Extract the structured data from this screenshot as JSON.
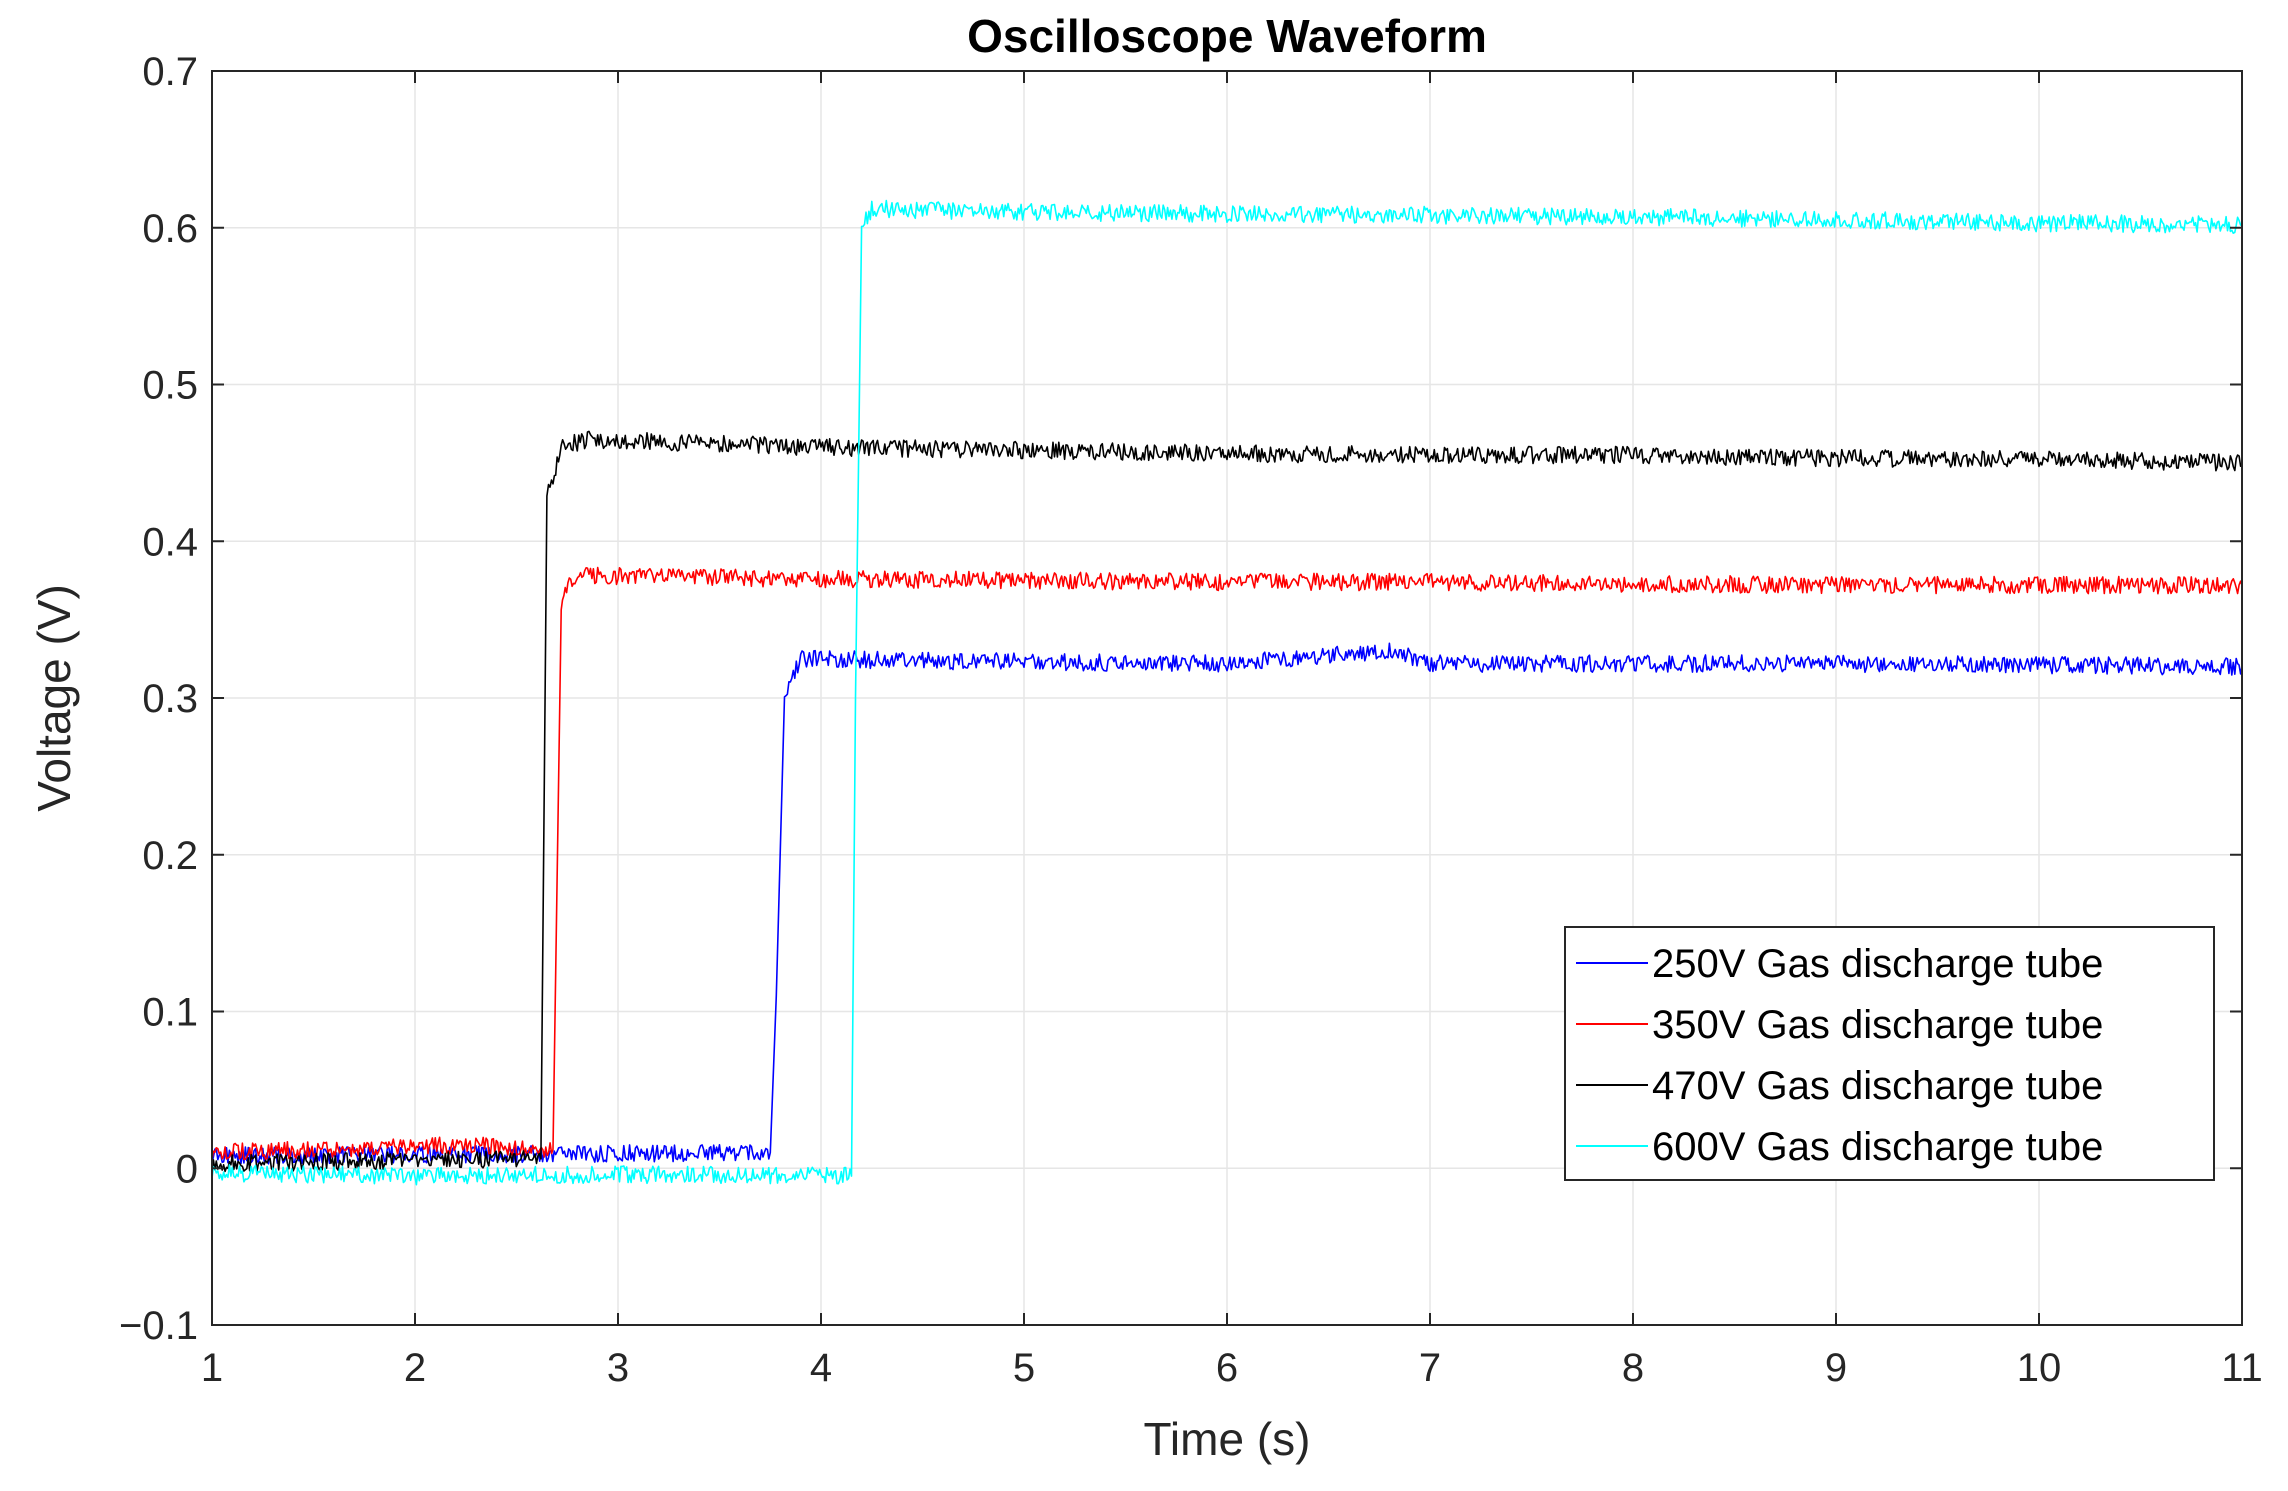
{
  "chart_data": {
    "type": "line",
    "title": "Oscilloscope Waveform",
    "xlabel": "Time (s)",
    "ylabel": "Voltage (V)",
    "xlim": [
      1,
      11
    ],
    "ylim": [
      -0.1,
      0.7
    ],
    "xticks": [
      1,
      2,
      3,
      4,
      5,
      6,
      7,
      8,
      9,
      10,
      11
    ],
    "xtick_labels": [
      "1",
      "2",
      "3",
      "4",
      "5",
      "6",
      "7",
      "8",
      "9",
      "10",
      "11"
    ],
    "yticks": [
      -0.1,
      0,
      0.1,
      0.2,
      0.3,
      0.4,
      0.5,
      0.6,
      0.7
    ],
    "ytick_labels": [
      "−0.1",
      "0",
      "0.1",
      "0.2",
      "0.3",
      "0.4",
      "0.5",
      "0.6",
      "0.7"
    ],
    "grid": true,
    "legend_position": "bottom-right",
    "series": [
      {
        "name": "250V Gas discharge tube",
        "color": "#0000ff",
        "x": [
          1.0,
          2.5,
          3.75,
          3.78,
          3.82,
          3.9,
          5,
          6,
          6.8,
          7,
          8,
          9,
          10,
          11
        ],
        "y": [
          0.008,
          0.009,
          0.01,
          0.11,
          0.3,
          0.325,
          0.323,
          0.322,
          0.33,
          0.322,
          0.322,
          0.322,
          0.321,
          0.32
        ]
      },
      {
        "name": "350V Gas discharge tube",
        "color": "#ff0000",
        "x": [
          1.0,
          2.3,
          2.68,
          2.72,
          2.76,
          2.85,
          4,
          5,
          6,
          7,
          8,
          9,
          10,
          11
        ],
        "y": [
          0.01,
          0.015,
          0.012,
          0.36,
          0.375,
          0.378,
          0.376,
          0.375,
          0.374,
          0.374,
          0.373,
          0.372,
          0.372,
          0.372
        ]
      },
      {
        "name": "470V Gas discharge tube",
        "color": "#000000",
        "x": [
          1.0,
          2.0,
          2.62,
          2.65,
          2.68,
          2.72,
          2.85,
          4,
          5,
          6,
          7,
          8,
          9,
          10,
          11
        ],
        "y": [
          0.003,
          0.005,
          0.006,
          0.43,
          0.44,
          0.46,
          0.465,
          0.46,
          0.458,
          0.456,
          0.455,
          0.455,
          0.453,
          0.452,
          0.45
        ]
      },
      {
        "name": "600V Gas discharge tube",
        "color": "#00ffff",
        "x": [
          1.0,
          2.0,
          3.0,
          4.15,
          4.17,
          4.2,
          4.25,
          5,
          6,
          7,
          8,
          9,
          10,
          11
        ],
        "y": [
          -0.003,
          -0.005,
          -0.004,
          -0.005,
          0.3,
          0.6,
          0.612,
          0.61,
          0.609,
          0.608,
          0.607,
          0.605,
          0.603,
          0.602
        ]
      }
    ]
  }
}
